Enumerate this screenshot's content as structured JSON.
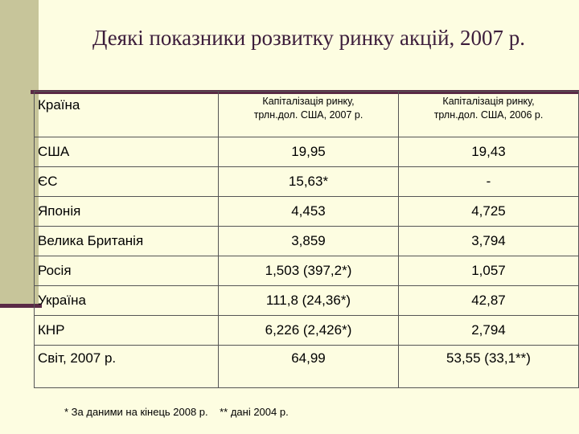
{
  "title": "Деякі показники розвитку ринку акцій, 2007 р.",
  "table": {
    "headers": {
      "country": "Країна",
      "cap2007_line1": "Капіталізація ринку,",
      "cap2007_line2": "трлн.дол. США, 2007 р.",
      "cap2006_line1": "Капіталізація ринку,",
      "cap2006_line2": "трлн.дол. США, 2006 р."
    },
    "rows": [
      {
        "country": "США",
        "cap2007": "19,95",
        "cap2006": "19,43"
      },
      {
        "country": "ЄС",
        "cap2007": "15,63*",
        "cap2006": "-"
      },
      {
        "country": "Японія",
        "cap2007": "4,453",
        "cap2006": "4,725"
      },
      {
        "country": "Велика Британія",
        "cap2007": "3,859",
        "cap2006": "3,794"
      },
      {
        "country": "Росія",
        "cap2007": "1,503 (397,2*)",
        "cap2006": "1,057"
      },
      {
        "country": "Україна",
        "cap2007": "111,8 (24,36*)",
        "cap2006": "42,87"
      },
      {
        "country": "КНР",
        "cap2007": "6,226 (2,426*)",
        "cap2006": "2,794"
      },
      {
        "country": "Світ, 2007 р.",
        "cap2007": "64,99",
        "cap2006": "53,55 (33,1**)"
      }
    ]
  },
  "footnote": "* За даними на кінець 2008 р.    ** дані 2004 р.",
  "colors": {
    "background": "#fdfde1",
    "stripe": "#c7c59a",
    "accent_rule": "#5a2a46",
    "title": "#3c1d3b"
  }
}
